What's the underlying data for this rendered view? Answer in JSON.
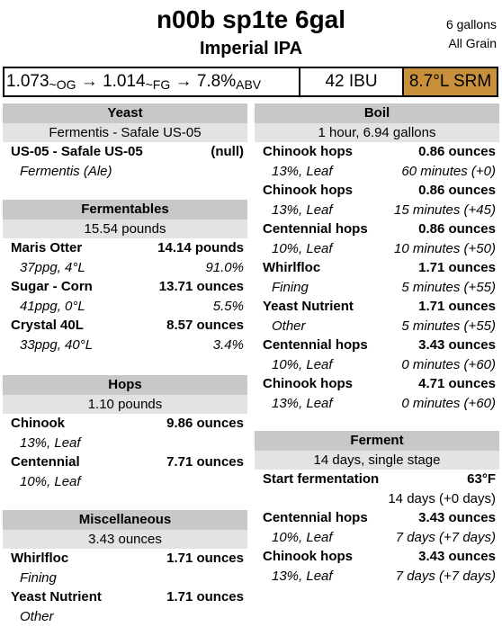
{
  "recipe": {
    "title": "n00b sp1te 6gal",
    "style": "Imperial IPA",
    "batch_size": "6 gallons",
    "method": "All Grain"
  },
  "stats": {
    "og": "1.073",
    "og_label": "~OG",
    "fg": "1.014",
    "fg_label": "~FG",
    "arrow": "→",
    "abv": "7.8%",
    "abv_label": "ABV",
    "ibu": "42 IBU",
    "srm": "8.7°L SRM",
    "srm_color": "#c8903a"
  },
  "yeast": {
    "heading": "Yeast",
    "summary": "Fermentis - Safale US-05",
    "items": [
      {
        "name": "US-05 - Safale US-05",
        "amount": "(null)",
        "detail": "Fermentis (Ale)",
        "detail_right": ""
      }
    ]
  },
  "fermentables": {
    "heading": "Fermentables",
    "summary": "15.54 pounds",
    "items": [
      {
        "name": "Maris Otter",
        "amount": "14.14 pounds",
        "detail": "37ppg, 4°L",
        "detail_right": "91.0%"
      },
      {
        "name": "Sugar - Corn",
        "amount": "13.71 ounces",
        "detail": "41ppg, 0°L",
        "detail_right": "5.5%"
      },
      {
        "name": "Crystal 40L",
        "amount": "8.57 ounces",
        "detail": "33ppg, 40°L",
        "detail_right": "3.4%"
      }
    ]
  },
  "hops": {
    "heading": "Hops",
    "summary": "1.10 pounds",
    "items": [
      {
        "name": "Chinook",
        "amount": "9.86 ounces",
        "detail": "13%, Leaf",
        "detail_right": ""
      },
      {
        "name": "Centennial",
        "amount": "7.71 ounces",
        "detail": "10%, Leaf",
        "detail_right": ""
      }
    ]
  },
  "misc": {
    "heading": "Miscellaneous",
    "summary": "3.43 ounces",
    "items": [
      {
        "name": "Whirlfloc",
        "amount": "1.71 ounces",
        "detail": "Fining",
        "detail_right": ""
      },
      {
        "name": "Yeast Nutrient",
        "amount": "1.71 ounces",
        "detail": "Other",
        "detail_right": ""
      }
    ]
  },
  "boil": {
    "heading": "Boil",
    "summary": "1 hour, 6.94 gallons",
    "items": [
      {
        "name": "Chinook hops",
        "amount": "0.86 ounces",
        "detail": "13%, Leaf",
        "detail_right": "60 minutes (+0)"
      },
      {
        "name": "Chinook hops",
        "amount": "0.86 ounces",
        "detail": "13%, Leaf",
        "detail_right": "15 minutes (+45)"
      },
      {
        "name": "Centennial hops",
        "amount": "0.86 ounces",
        "detail": "10%, Leaf",
        "detail_right": "10 minutes (+50)"
      },
      {
        "name": "Whirlfloc",
        "amount": "1.71 ounces",
        "detail": "Fining",
        "detail_right": "5 minutes (+55)"
      },
      {
        "name": "Yeast Nutrient",
        "amount": "1.71 ounces",
        "detail": "Other",
        "detail_right": "5 minutes (+55)"
      },
      {
        "name": "Centennial hops",
        "amount": "3.43 ounces",
        "detail": "10%, Leaf",
        "detail_right": "0 minutes (+60)"
      },
      {
        "name": "Chinook hops",
        "amount": "4.71 ounces",
        "detail": "13%, Leaf",
        "detail_right": "0 minutes (+60)"
      }
    ]
  },
  "ferment": {
    "heading": "Ferment",
    "summary": "14 days, single stage",
    "items": [
      {
        "name": "Start fermentation",
        "amount": "63°F",
        "detail": "",
        "detail_right": "14 days (+0 days)",
        "plain": true
      },
      {
        "name": "Centennial hops",
        "amount": "3.43 ounces",
        "detail": "10%, Leaf",
        "detail_right": "7 days (+7 days)"
      },
      {
        "name": "Chinook hops",
        "amount": "3.43 ounces",
        "detail": "13%, Leaf",
        "detail_right": "7 days (+7 days)"
      }
    ]
  }
}
